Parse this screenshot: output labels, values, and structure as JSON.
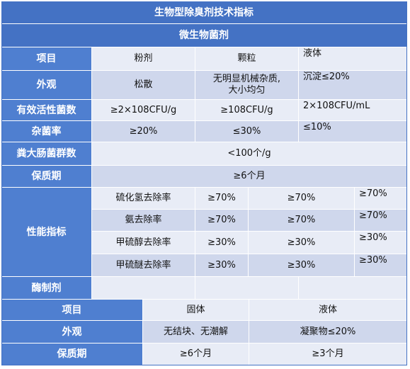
{
  "title": "生物型除臭剂技术指标",
  "section1": "微生物菌剂",
  "s1": {
    "item": {
      "label": "项目",
      "c1": "粉剂",
      "c2": "颗粒",
      "c3": "液体"
    },
    "appearance": {
      "label": "外观",
      "c1": "松散",
      "c2a": "无明显机械杂质,",
      "c2b": "大小均匀",
      "c3": "沉淀≤20%"
    },
    "count": {
      "label": "有效活性菌数",
      "c1": "≥2×108CFU/g",
      "c2": "≥108CFU/g",
      "c3": "2×108CFU/mL"
    },
    "impurity": {
      "label": "杂菌率",
      "c1": "≥20%",
      "c2": "≤30%",
      "c3": "≤10%"
    },
    "coliform": {
      "label": "粪大肠菌群数",
      "value": "<100个/g"
    },
    "shelf": {
      "label": "保质期",
      "value": "≥6个月"
    },
    "perf": {
      "label": "性能指标",
      "rows": [
        {
          "name": "硫化氢去除率",
          "a": "≥70%",
          "b": "≥70%",
          "c": "≥70%"
        },
        {
          "name": "氨去除率",
          "a": "≥70%",
          "b": "≥70%",
          "c": "≥70%"
        },
        {
          "name": "甲硫醇去除率",
          "a": "≥30%",
          "b": "≥30%",
          "c": "≥30%"
        },
        {
          "name": "甲硫醚去除率",
          "a": "≥30%",
          "b": "≥30%",
          "c": "≥30%"
        }
      ]
    }
  },
  "section2": "酶制剂",
  "s2": {
    "item": {
      "label": "项目",
      "c1": "固体",
      "c2": "液体"
    },
    "appearance": {
      "label": "外观",
      "c1": "无结块、无潮解",
      "c2": "凝聚物≤20%"
    },
    "shelf": {
      "label": "保质期",
      "c1": "≥6个月",
      "c2": "≥3个月"
    }
  }
}
